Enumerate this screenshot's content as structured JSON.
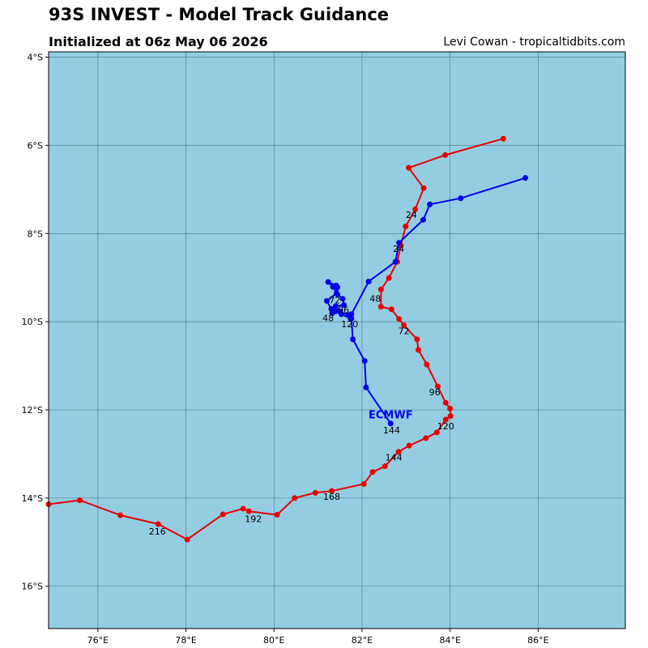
{
  "header": {
    "title": "93S INVEST - Model Track Guidance",
    "subtitle": "Initialized at 06z May 06 2026",
    "credit": "Levi Cowan - tropicaltidbits.com"
  },
  "colors": {
    "ocean": "#94cde2",
    "grid": "#2f5560",
    "frame": "#000000",
    "red_track": "#e60000",
    "blue_track": "#0000e6"
  },
  "chart_data": {
    "type": "map-track",
    "title": "93S INVEST - Model Track Guidance",
    "xlim": [
      74.88,
      87.98
    ],
    "ylim": [
      -16.96,
      -3.88
    ],
    "x_ticks": [
      {
        "value": 76,
        "label": "76°E"
      },
      {
        "value": 78,
        "label": "78°E"
      },
      {
        "value": 80,
        "label": "80°E"
      },
      {
        "value": 82,
        "label": "82°E"
      },
      {
        "value": 84,
        "label": "84°E"
      },
      {
        "value": 86,
        "label": "86°E"
      }
    ],
    "y_ticks": [
      {
        "value": -4,
        "label": "4°S"
      },
      {
        "value": -6,
        "label": "6°S"
      },
      {
        "value": -8,
        "label": "8°S"
      },
      {
        "value": -10,
        "label": "10°S"
      },
      {
        "value": -12,
        "label": "12°S"
      },
      {
        "value": -14,
        "label": "14°S"
      },
      {
        "value": -16,
        "label": "16°S"
      }
    ],
    "grid": true,
    "series": [
      {
        "color": "red",
        "points": [
          [
            85.21,
            -5.85
          ],
          [
            83.89,
            -6.22
          ],
          [
            83.06,
            -6.51
          ],
          [
            83.4,
            -6.97
          ],
          [
            83.21,
            -7.45
          ],
          [
            82.99,
            -7.84
          ],
          [
            82.88,
            -8.27
          ],
          [
            82.8,
            -8.64
          ],
          [
            82.61,
            -9.01
          ],
          [
            82.43,
            -9.27
          ],
          [
            82.43,
            -9.66
          ],
          [
            82.67,
            -9.72
          ],
          [
            82.84,
            -9.94
          ],
          [
            82.95,
            -10.08
          ],
          [
            83.25,
            -10.4
          ],
          [
            83.28,
            -10.64
          ],
          [
            83.47,
            -10.97
          ],
          [
            83.72,
            -11.47
          ],
          [
            83.9,
            -11.84
          ],
          [
            84.0,
            -11.97
          ],
          [
            84.01,
            -12.14
          ],
          [
            83.9,
            -12.22
          ],
          [
            83.7,
            -12.51
          ],
          [
            83.45,
            -12.64
          ],
          [
            83.07,
            -12.81
          ],
          [
            82.83,
            -12.95
          ],
          [
            82.52,
            -13.28
          ],
          [
            82.24,
            -13.41
          ],
          [
            82.04,
            -13.68
          ],
          [
            81.31,
            -13.84
          ],
          [
            80.94,
            -13.88
          ],
          [
            80.47,
            -14.0
          ],
          [
            80.07,
            -14.38
          ],
          [
            79.43,
            -14.3
          ],
          [
            79.3,
            -14.24
          ],
          [
            78.84,
            -14.37
          ],
          [
            78.03,
            -14.94
          ],
          [
            77.37,
            -14.59
          ],
          [
            76.51,
            -14.39
          ],
          [
            75.59,
            -14.05
          ],
          [
            74.88,
            -14.14
          ]
        ],
        "labels": [
          {
            "text": "24",
            "lon": 83.12,
            "lat": -7.65
          },
          {
            "text": "48",
            "lon": 82.3,
            "lat": -9.55
          },
          {
            "text": "72",
            "lon": 82.95,
            "lat": -10.28
          },
          {
            "text": "96",
            "lon": 83.65,
            "lat": -11.67
          },
          {
            "text": "120",
            "lon": 83.9,
            "lat": -12.44
          },
          {
            "text": "144",
            "lon": 82.72,
            "lat": -13.15
          },
          {
            "text": "168",
            "lon": 81.31,
            "lat": -14.04
          },
          {
            "text": "192",
            "lon": 79.53,
            "lat": -14.54
          },
          {
            "text": "216",
            "lon": 77.35,
            "lat": -14.83
          }
        ]
      },
      {
        "name": "ECMWF",
        "color": "blue",
        "label_lon": 82.65,
        "label_lat": -12.1,
        "points": [
          [
            85.71,
            -6.74
          ],
          [
            84.24,
            -7.2
          ],
          [
            83.54,
            -7.34
          ],
          [
            83.39,
            -7.69
          ],
          [
            82.84,
            -8.21
          ],
          [
            82.76,
            -8.64
          ],
          [
            82.15,
            -9.09
          ],
          [
            81.76,
            -9.83
          ],
          [
            81.74,
            -9.93
          ],
          [
            81.53,
            -9.83
          ],
          [
            81.39,
            -9.77
          ],
          [
            81.32,
            -9.81
          ],
          [
            81.3,
            -9.71
          ],
          [
            81.2,
            -9.53
          ],
          [
            81.42,
            -9.35
          ],
          [
            81.44,
            -9.22
          ],
          [
            81.41,
            -9.18
          ],
          [
            81.23,
            -9.1
          ],
          [
            81.34,
            -9.21
          ],
          [
            81.44,
            -9.38
          ],
          [
            81.56,
            -9.48
          ],
          [
            81.59,
            -9.62
          ],
          [
            81.4,
            -9.65
          ],
          [
            81.5,
            -9.77
          ],
          [
            81.69,
            -9.85
          ],
          [
            81.76,
            -9.93
          ],
          [
            81.79,
            -10.4
          ],
          [
            82.06,
            -10.89
          ],
          [
            82.09,
            -11.49
          ],
          [
            82.65,
            -12.31
          ]
        ],
        "labels": [
          {
            "text": "24",
            "lon": 82.83,
            "lat": -8.42
          },
          {
            "text": "72",
            "lon": 81.38,
            "lat": -9.58
          },
          {
            "text": "96",
            "lon": 81.58,
            "lat": -9.8
          },
          {
            "text": "48",
            "lon": 81.23,
            "lat": -9.99
          },
          {
            "text": "120",
            "lon": 81.72,
            "lat": -10.13
          },
          {
            "text": "144",
            "lon": 82.67,
            "lat": -12.53
          }
        ]
      }
    ]
  }
}
